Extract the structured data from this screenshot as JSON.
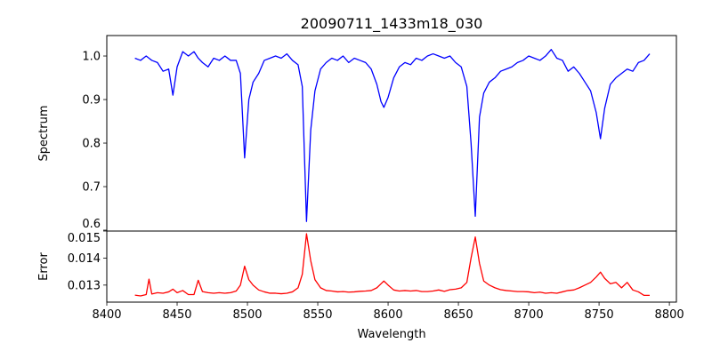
{
  "chart_data": [
    {
      "type": "line",
      "title": "20090711_1433m18_030",
      "xlabel": "",
      "ylabel": "Spectrum",
      "xlim": [
        8400,
        8805
      ],
      "ylim": [
        0.598,
        1.047
      ],
      "yticks": [
        0.6,
        0.7,
        0.8,
        0.9,
        1.0
      ],
      "ytick_labels": [
        "0.6",
        "0.7",
        "0.8",
        "0.9",
        "1.0"
      ],
      "grid": false,
      "series": [
        {
          "name": "Spectrum",
          "color": "#0000ff",
          "x": [
            8420,
            8424,
            8428,
            8430,
            8432,
            8436,
            8440,
            8444,
            8447,
            8450,
            8454,
            8458,
            8462,
            8465,
            8468,
            8472,
            8476,
            8480,
            8484,
            8488,
            8492,
            8495,
            8498,
            8501,
            8504,
            8508,
            8512,
            8516,
            8520,
            8524,
            8528,
            8532,
            8536,
            8539,
            8542,
            8545,
            8548,
            8552,
            8556,
            8560,
            8564,
            8568,
            8572,
            8576,
            8580,
            8584,
            8588,
            8592,
            8595,
            8597,
            8600,
            8604,
            8608,
            8612,
            8616,
            8620,
            8624,
            8628,
            8632,
            8636,
            8640,
            8644,
            8648,
            8652,
            8656,
            8659,
            8662,
            8665,
            8668,
            8672,
            8676,
            8680,
            8684,
            8688,
            8692,
            8696,
            8700,
            8704,
            8708,
            8712,
            8716,
            8720,
            8724,
            8728,
            8732,
            8736,
            8740,
            8744,
            8748,
            8751,
            8754,
            8758,
            8762,
            8766,
            8770,
            8774,
            8778,
            8782,
            8786
          ],
          "y": [
            0.995,
            0.99,
            1.0,
            0.995,
            0.99,
            0.985,
            0.965,
            0.97,
            0.91,
            0.975,
            1.01,
            1.0,
            1.01,
            0.995,
            0.985,
            0.975,
            0.995,
            0.99,
            1.0,
            0.99,
            0.99,
            0.96,
            0.766,
            0.9,
            0.94,
            0.96,
            0.99,
            0.995,
            1.0,
            0.995,
            1.005,
            0.99,
            0.98,
            0.93,
            0.62,
            0.83,
            0.92,
            0.97,
            0.985,
            0.995,
            0.99,
            1.0,
            0.985,
            0.995,
            0.99,
            0.985,
            0.97,
            0.935,
            0.895,
            0.882,
            0.905,
            0.95,
            0.975,
            0.985,
            0.98,
            0.995,
            0.99,
            1.0,
            1.005,
            1.0,
            0.995,
            1.0,
            0.985,
            0.975,
            0.93,
            0.8,
            0.632,
            0.86,
            0.915,
            0.94,
            0.95,
            0.965,
            0.97,
            0.975,
            0.985,
            0.99,
            1.0,
            0.995,
            0.99,
            1.0,
            1.015,
            0.995,
            0.99,
            0.965,
            0.975,
            0.96,
            0.94,
            0.92,
            0.87,
            0.81,
            0.88,
            0.935,
            0.95,
            0.96,
            0.97,
            0.965,
            0.985,
            0.99,
            1.005
          ]
        }
      ]
    },
    {
      "type": "line",
      "title": "",
      "xlabel": "Wavelength",
      "ylabel": "Error",
      "xlim": [
        8400,
        8805
      ],
      "ylim": [
        0.01237,
        0.015
      ],
      "xticks": [
        8400,
        8450,
        8500,
        8550,
        8600,
        8650,
        8700,
        8750,
        8800
      ],
      "xtick_labels": [
        "8400",
        "8450",
        "8500",
        "8550",
        "8600",
        "8650",
        "8700",
        "8750",
        "8800"
      ],
      "yticks": [
        0.013,
        0.014,
        0.015
      ],
      "ytick_labels": [
        "0.013",
        "0.014",
        "0.015"
      ],
      "grid": false,
      "series": [
        {
          "name": "Error",
          "color": "#ff0000",
          "x": [
            8420,
            8424,
            8428,
            8430,
            8432,
            8436,
            8440,
            8444,
            8447,
            8450,
            8454,
            8458,
            8462,
            8465,
            8468,
            8472,
            8476,
            8480,
            8484,
            8488,
            8492,
            8495,
            8498,
            8501,
            8504,
            8508,
            8512,
            8516,
            8520,
            8524,
            8528,
            8532,
            8536,
            8539,
            8542,
            8545,
            8548,
            8552,
            8556,
            8560,
            8564,
            8568,
            8572,
            8576,
            8580,
            8584,
            8588,
            8592,
            8595,
            8597,
            8600,
            8604,
            8608,
            8612,
            8616,
            8620,
            8624,
            8628,
            8632,
            8636,
            8640,
            8644,
            8648,
            8652,
            8656,
            8659,
            8662,
            8665,
            8668,
            8672,
            8676,
            8680,
            8684,
            8688,
            8692,
            8696,
            8700,
            8704,
            8708,
            8712,
            8716,
            8720,
            8724,
            8728,
            8732,
            8736,
            8740,
            8744,
            8748,
            8751,
            8754,
            8758,
            8762,
            8766,
            8770,
            8774,
            8778,
            8782,
            8786
          ],
          "y": [
            0.01263,
            0.0126,
            0.01265,
            0.01322,
            0.01267,
            0.01272,
            0.0127,
            0.01275,
            0.01285,
            0.01272,
            0.0128,
            0.01265,
            0.01265,
            0.01318,
            0.01276,
            0.01272,
            0.0127,
            0.01272,
            0.0127,
            0.01272,
            0.01278,
            0.013,
            0.0137,
            0.0132,
            0.013,
            0.01282,
            0.01275,
            0.0127,
            0.0127,
            0.01268,
            0.0127,
            0.01275,
            0.0129,
            0.0134,
            0.0149,
            0.0139,
            0.0132,
            0.0129,
            0.0128,
            0.01278,
            0.01275,
            0.01276,
            0.01274,
            0.01275,
            0.01277,
            0.01278,
            0.0128,
            0.0129,
            0.01305,
            0.01315,
            0.013,
            0.01282,
            0.01278,
            0.0128,
            0.01278,
            0.0128,
            0.01276,
            0.01276,
            0.01278,
            0.01282,
            0.01277,
            0.01283,
            0.01285,
            0.0129,
            0.0131,
            0.014,
            0.01478,
            0.0138,
            0.01315,
            0.013,
            0.0129,
            0.01283,
            0.0128,
            0.01278,
            0.01276,
            0.01276,
            0.01275,
            0.01272,
            0.01274,
            0.0127,
            0.01272,
            0.0127,
            0.01275,
            0.0128,
            0.01282,
            0.0129,
            0.013,
            0.0131,
            0.0133,
            0.01348,
            0.01325,
            0.01305,
            0.0131,
            0.0129,
            0.0131,
            0.01282,
            0.01275,
            0.01262,
            0.01262
          ]
        }
      ]
    }
  ]
}
